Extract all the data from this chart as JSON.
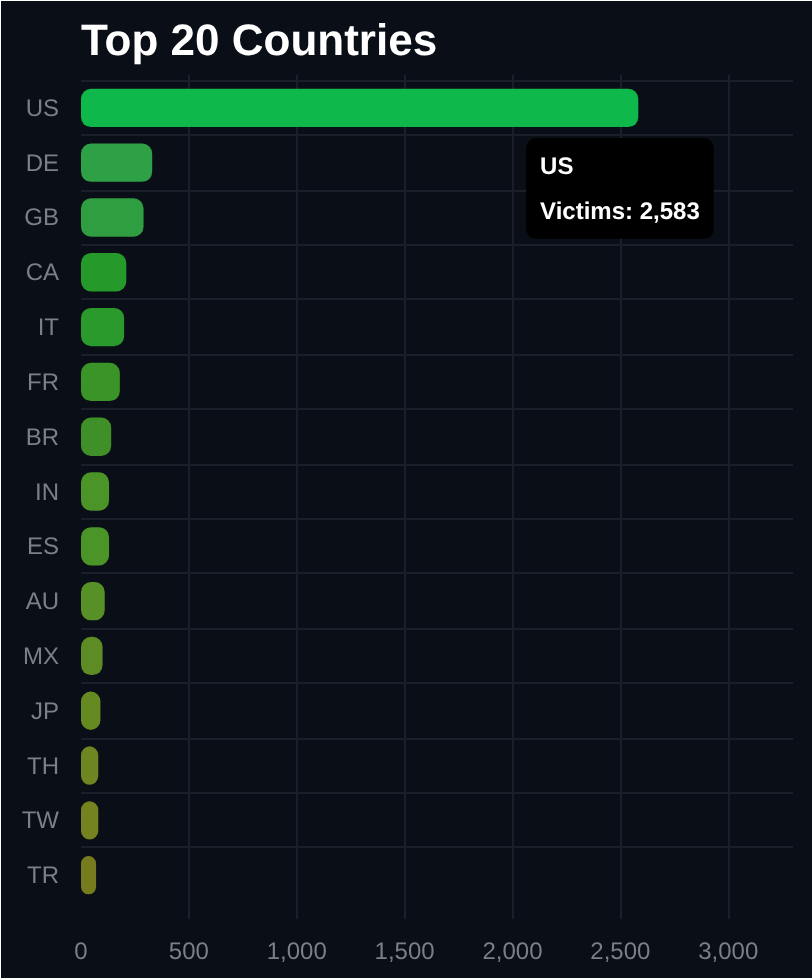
{
  "chart_data": {
    "type": "bar",
    "orientation": "horizontal",
    "title": "Top 20 Countries",
    "categories": [
      "US",
      "DE",
      "GB",
      "CA",
      "IT",
      "FR",
      "BR",
      "IN",
      "ES",
      "AU",
      "MX",
      "JP",
      "TH",
      "TW",
      "TR"
    ],
    "values": [
      2583,
      330,
      290,
      210,
      200,
      180,
      140,
      130,
      130,
      110,
      100,
      90,
      80,
      80,
      70
    ],
    "colors": [
      "#0fb84a",
      "#2ea046",
      "#2e9e40",
      "#259a2a",
      "#2b9a2c",
      "#3a9428",
      "#3f9028",
      "#4a9428",
      "#4a9428",
      "#579026",
      "#5e8c24",
      "#668a22",
      "#6e8622",
      "#748220",
      "#767c1e"
    ],
    "xlim": [
      0,
      3300
    ],
    "xticks": [
      0,
      {
        "value": 500,
        "label": "500"
      },
      {
        "value": 1000,
        "label": "1,000"
      },
      {
        "value": 1500,
        "label": "1,500"
      },
      {
        "value": 2000,
        "label": "2,000"
      },
      {
        "value": 2500,
        "label": "2,500"
      },
      {
        "value": 3000,
        "label": "3,000"
      }
    ],
    "grid": true,
    "annotations": [
      {
        "text": "US\nVictims: 2,583",
        "x": 2583,
        "y": "US"
      }
    ]
  }
}
